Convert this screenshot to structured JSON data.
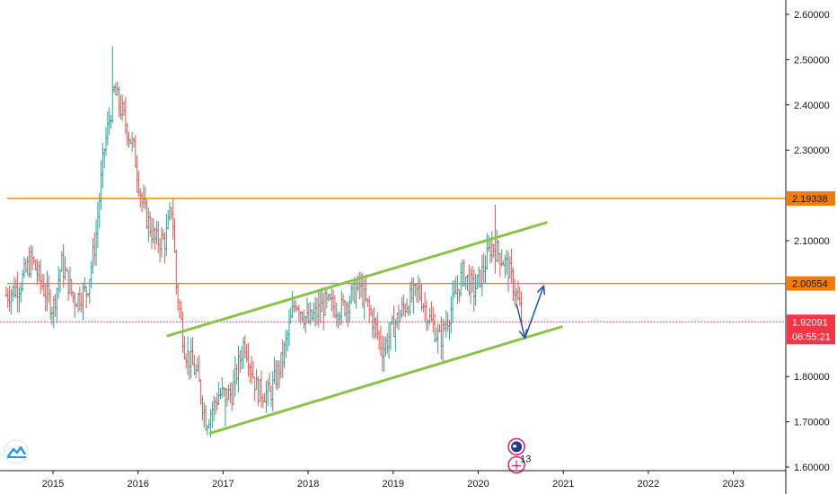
{
  "chart_data": {
    "type": "bar",
    "style": "ohlc",
    "interval": "weekly",
    "colors": {
      "up": "#26a69a",
      "down": "#ef5350",
      "level": "#f57c00",
      "channel": "#8bc34a",
      "arrow": "#1e53a6",
      "axis_border": "#131722",
      "last_price": "#f23645",
      "grid": "none"
    },
    "x_axis": {
      "tick_labels": [
        "2015",
        "2016",
        "2017",
        "2018",
        "2019",
        "2020",
        "2021",
        "2022",
        "2023"
      ]
    },
    "y_axis": {
      "position": "right",
      "range": [
        1.58,
        2.63
      ],
      "tick_labels": [
        "2.60000",
        "2.50000",
        "2.40000",
        "2.30000",
        "2.10000",
        "1.80000",
        "1.70000",
        "1.60000"
      ]
    },
    "price_levels": [
      {
        "label": "2.19338",
        "value": 2.19338,
        "color": "#f57c00"
      },
      {
        "label": "2.00554",
        "value": 2.00554,
        "color": "#f57c00"
      }
    ],
    "last_price": {
      "label": "1.92091",
      "value": 1.92091,
      "countdown": "06:55:21"
    },
    "price_path": [
      [
        2014.45,
        1.98
      ],
      [
        2014.6,
        2.0
      ],
      [
        2014.75,
        2.06
      ],
      [
        2014.9,
        1.99
      ],
      [
        2015.0,
        1.95
      ],
      [
        2015.1,
        2.05
      ],
      [
        2015.25,
        1.97
      ],
      [
        2015.4,
        1.99
      ],
      [
        2015.5,
        2.1
      ],
      [
        2015.6,
        2.3
      ],
      [
        2015.72,
        2.43
      ],
      [
        2015.82,
        2.38
      ],
      [
        2015.95,
        2.3
      ],
      [
        2016.05,
        2.18
      ],
      [
        2016.2,
        2.1
      ],
      [
        2016.32,
        2.1
      ],
      [
        2016.4,
        2.18
      ],
      [
        2016.45,
        2.0
      ],
      [
        2016.55,
        1.86
      ],
      [
        2016.7,
        1.8
      ],
      [
        2016.8,
        1.7
      ],
      [
        2016.95,
        1.76
      ],
      [
        2017.1,
        1.76
      ],
      [
        2017.25,
        1.88
      ],
      [
        2017.4,
        1.77
      ],
      [
        2017.55,
        1.76
      ],
      [
        2017.7,
        1.84
      ],
      [
        2017.85,
        1.97
      ],
      [
        2018.0,
        1.92
      ],
      [
        2018.2,
        1.96
      ],
      [
        2018.4,
        1.95
      ],
      [
        2018.6,
        2.0
      ],
      [
        2018.75,
        1.93
      ],
      [
        2018.88,
        1.86
      ],
      [
        2019.0,
        1.91
      ],
      [
        2019.15,
        1.96
      ],
      [
        2019.3,
        1.99
      ],
      [
        2019.42,
        1.93
      ],
      [
        2019.55,
        1.88
      ],
      [
        2019.7,
        1.96
      ],
      [
        2019.82,
        2.03
      ],
      [
        2019.95,
        1.99
      ],
      [
        2020.05,
        2.03
      ],
      [
        2020.15,
        2.09
      ],
      [
        2020.25,
        2.07
      ],
      [
        2020.35,
        2.04
      ],
      [
        2020.45,
        1.98
      ],
      [
        2020.52,
        1.92
      ]
    ],
    "bar_spikes": [
      {
        "x": 2015.7,
        "high": 2.53
      },
      {
        "x": 2020.2,
        "high": 2.18
      },
      {
        "x": 2016.82,
        "low": 1.67
      },
      {
        "x": 2018.9,
        "low": 1.81
      },
      {
        "x": 2019.58,
        "low": 1.83
      },
      {
        "x": 2017.02,
        "low": 1.69
      }
    ],
    "trend_lines": [
      {
        "name": "channel-upper",
        "from": [
          2016.35,
          1.89
        ],
        "to": [
          2020.8,
          2.14
        ]
      },
      {
        "name": "channel-lower",
        "from": [
          2016.85,
          1.675
        ],
        "to": [
          2020.98,
          1.91
        ]
      }
    ],
    "projection_arrows": [
      {
        "from": [
          2020.45,
          1.96
        ],
        "to": [
          2020.55,
          1.885
        ]
      },
      {
        "from": [
          2020.55,
          1.885
        ],
        "to": [
          2020.77,
          2.0
        ]
      }
    ],
    "event_markers": [
      {
        "kind": "flag",
        "x": 2020.45,
        "y": 1.645
      },
      {
        "kind": "counter",
        "x": 2020.45,
        "y": 1.605,
        "label": "13"
      }
    ]
  }
}
